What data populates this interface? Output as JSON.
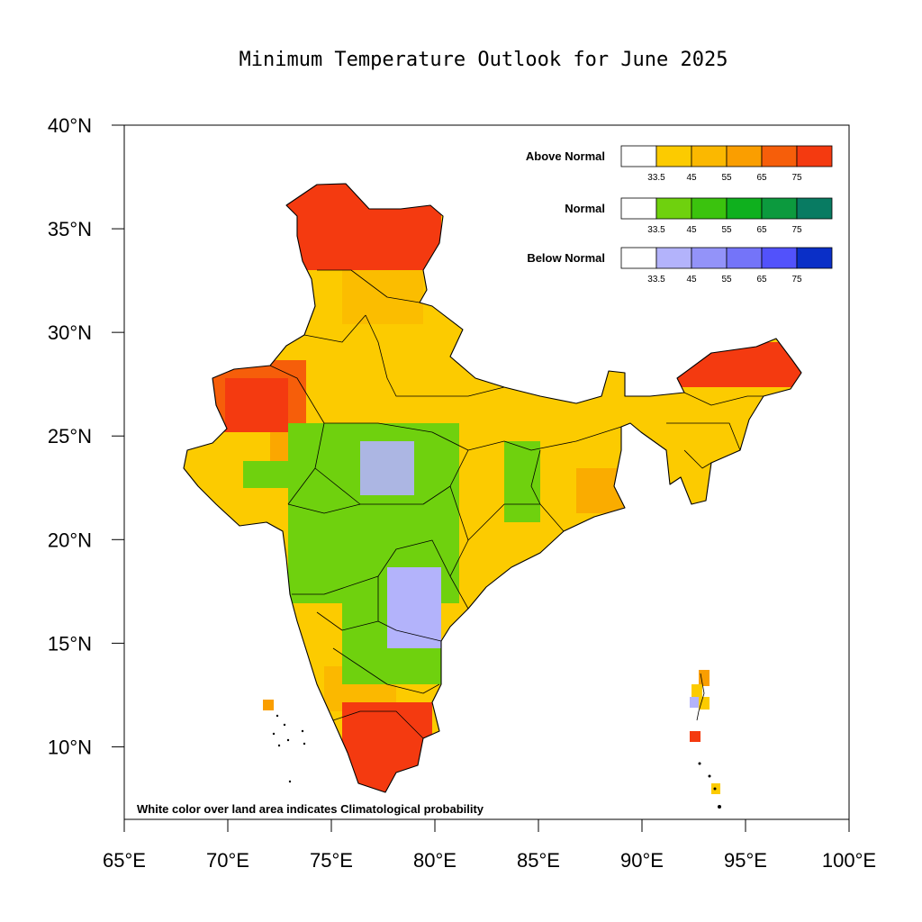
{
  "map": {
    "title": "Minimum Temperature Outlook for June 2025",
    "footnote": "White color over land area indicates Climatological probability",
    "lon_range": [
      65,
      100
    ],
    "lat_range": [
      6.5,
      40
    ],
    "lon_ticks": [
      "65°E",
      "70°E",
      "75°E",
      "80°E",
      "85°E",
      "90°E",
      "95°E",
      "100°E"
    ],
    "lat_ticks": [
      "10°N",
      "15°N",
      "20°N",
      "25°N",
      "30°N",
      "35°N",
      "40°N"
    ],
    "lon_tick_values": [
      65,
      70,
      75,
      80,
      85,
      90,
      95,
      100
    ],
    "lat_tick_values": [
      10,
      15,
      20,
      25,
      30,
      35,
      40
    ]
  },
  "legend": {
    "tick_labels": [
      "33.5",
      "45",
      "55",
      "65",
      "75"
    ],
    "categories": [
      {
        "label": "Above Normal",
        "colors": [
          "#ffffff",
          "#fccb00",
          "#fbb800",
          "#fa9e00",
          "#f65e0a",
          "#f43a10"
        ]
      },
      {
        "label": "Normal",
        "colors": [
          "#ffffff",
          "#6fd10e",
          "#3bc30e",
          "#0fb01e",
          "#0c9a3e",
          "#087b62"
        ]
      },
      {
        "label": "Below Normal",
        "colors": [
          "#ffffff",
          "#b3b3fb",
          "#9393f9",
          "#7474f9",
          "#5252fb",
          "#0a2fc7"
        ]
      }
    ]
  },
  "region_colors": {
    "above_33": "#fccb00",
    "above_45": "#fbb800",
    "above_55": "#fa9e00",
    "above_65": "#f65e0a",
    "above_75": "#f43a10",
    "normal_33": "#6fd10e",
    "below_33": "#b3b3fb"
  }
}
